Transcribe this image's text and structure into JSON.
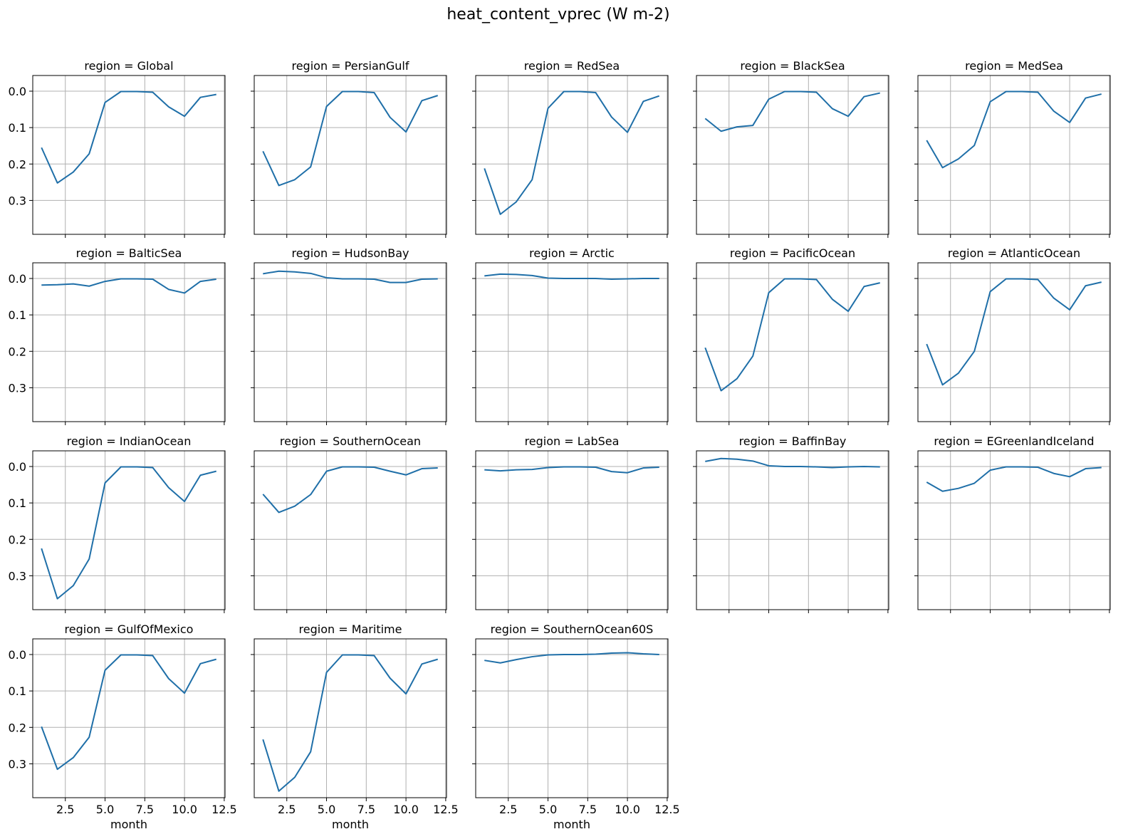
{
  "chart_data": {
    "type": "line",
    "title": "heat_content_vprec (W m-2)",
    "facet_prefix": "region = ",
    "xlabel": "month",
    "x": [
      1,
      2,
      3,
      4,
      5,
      6,
      7,
      8,
      9,
      10,
      11,
      12
    ],
    "xticks": [
      2.5,
      5.0,
      7.5,
      10.0,
      12.5
    ],
    "xtick_labels": [
      "2.5",
      "5.0",
      "7.5",
      "10.0",
      "12.5"
    ],
    "xlim": [
      0.45,
      12.55
    ],
    "yticks": [
      0.0,
      0.1,
      0.2,
      0.3
    ],
    "ytick_labels": [
      "0.0",
      "0.1",
      "0.2",
      "0.3"
    ],
    "ylim": [
      -0.043,
      0.393
    ],
    "yaxis_inverted": true,
    "grid": true,
    "line_color": "#1f6fa8",
    "panels": [
      {
        "region": "Global",
        "values": [
          0.155,
          0.252,
          0.222,
          0.172,
          0.031,
          0.001,
          0.001,
          0.003,
          0.043,
          0.069,
          0.017,
          0.009
        ]
      },
      {
        "region": "PersianGulf",
        "values": [
          0.165,
          0.259,
          0.243,
          0.208,
          0.042,
          0.001,
          0.001,
          0.004,
          0.072,
          0.112,
          0.026,
          0.012
        ]
      },
      {
        "region": "RedSea",
        "values": [
          0.212,
          0.338,
          0.304,
          0.243,
          0.047,
          0.001,
          0.001,
          0.004,
          0.071,
          0.113,
          0.028,
          0.013
        ]
      },
      {
        "region": "BlackSea",
        "values": [
          0.075,
          0.11,
          0.098,
          0.094,
          0.022,
          0.001,
          0.001,
          0.003,
          0.048,
          0.069,
          0.015,
          0.005
        ]
      },
      {
        "region": "MedSea",
        "values": [
          0.135,
          0.21,
          0.186,
          0.149,
          0.029,
          0.001,
          0.001,
          0.003,
          0.055,
          0.086,
          0.019,
          0.008
        ]
      },
      {
        "region": "BalticSea",
        "values": [
          0.018,
          0.017,
          0.015,
          0.021,
          0.008,
          0.001,
          0.001,
          0.002,
          0.03,
          0.04,
          0.008,
          0.002
        ]
      },
      {
        "region": "HudsonBay",
        "values": [
          -0.013,
          -0.02,
          -0.018,
          -0.014,
          -0.002,
          0.001,
          0.001,
          0.002,
          0.011,
          0.011,
          0.002,
          0.001
        ]
      },
      {
        "region": "Arctic",
        "values": [
          -0.007,
          -0.012,
          -0.011,
          -0.008,
          -0.001,
          0.0,
          0.0,
          0.0,
          0.002,
          0.001,
          0.0,
          0.0
        ]
      },
      {
        "region": "PacificOcean",
        "values": [
          0.19,
          0.308,
          0.275,
          0.213,
          0.039,
          0.001,
          0.001,
          0.003,
          0.057,
          0.09,
          0.022,
          0.012
        ]
      },
      {
        "region": "AtlanticOcean",
        "values": [
          0.18,
          0.292,
          0.26,
          0.2,
          0.036,
          0.001,
          0.001,
          0.003,
          0.054,
          0.086,
          0.02,
          0.01
        ]
      },
      {
        "region": "IndianOcean",
        "values": [
          0.225,
          0.363,
          0.327,
          0.254,
          0.045,
          0.001,
          0.001,
          0.003,
          0.058,
          0.096,
          0.024,
          0.013
        ]
      },
      {
        "region": "SouthernOcean",
        "values": [
          0.076,
          0.126,
          0.109,
          0.077,
          0.013,
          0.001,
          0.001,
          0.002,
          0.013,
          0.023,
          0.006,
          0.004
        ]
      },
      {
        "region": "LabSea",
        "values": [
          0.009,
          0.012,
          0.009,
          0.008,
          0.003,
          0.001,
          0.001,
          0.002,
          0.014,
          0.017,
          0.004,
          0.002
        ]
      },
      {
        "region": "BaffinBay",
        "values": [
          -0.014,
          -0.022,
          -0.02,
          -0.015,
          -0.002,
          0.0,
          0.0,
          0.001,
          0.003,
          0.001,
          0.0,
          0.001
        ]
      },
      {
        "region": "EGreenlandIceland",
        "values": [
          0.043,
          0.068,
          0.06,
          0.046,
          0.01,
          0.001,
          0.001,
          0.002,
          0.019,
          0.028,
          0.006,
          0.003
        ]
      },
      {
        "region": "GulfOfMexico",
        "values": [
          0.198,
          0.315,
          0.283,
          0.227,
          0.043,
          0.001,
          0.001,
          0.003,
          0.066,
          0.106,
          0.025,
          0.013
        ]
      },
      {
        "region": "Maritime",
        "values": [
          0.233,
          0.375,
          0.337,
          0.267,
          0.049,
          0.001,
          0.001,
          0.003,
          0.065,
          0.108,
          0.026,
          0.013
        ]
      },
      {
        "region": "SouthernOcean60S",
        "values": [
          0.016,
          0.023,
          0.014,
          0.006,
          0.001,
          0.0,
          0.0,
          -0.001,
          -0.004,
          -0.005,
          -0.002,
          0.0
        ]
      }
    ]
  }
}
